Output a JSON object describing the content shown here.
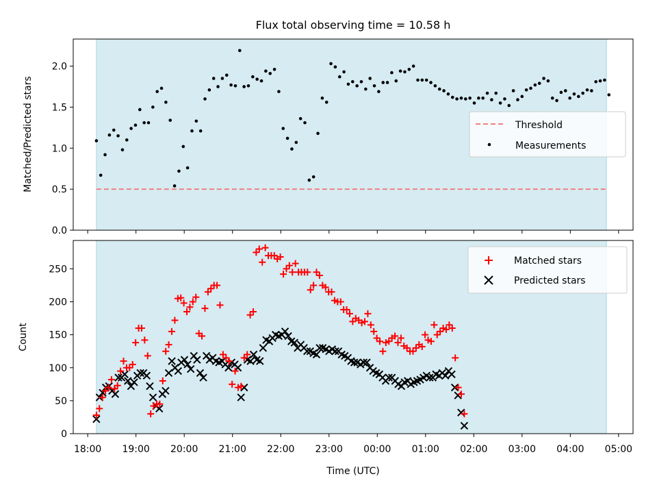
{
  "chart_data": [
    {
      "type": "scatter",
      "title": "Flux total observing time = 10.58 h",
      "ylabel": "Matched/Predicted stars",
      "xlabel": "",
      "ylim": [
        0,
        2.33
      ],
      "yticks": [
        0.0,
        0.5,
        1.0,
        1.5,
        2.0
      ],
      "ytick_labels": [
        "0.0",
        "0.5",
        "1.0",
        "1.5",
        "2.0"
      ],
      "threshold": 0.5,
      "shaded_range_hours": [
        18.18,
        28.75
      ],
      "legend": {
        "position": "right",
        "entries": [
          "Threshold",
          "Measurements"
        ]
      },
      "series": [
        {
          "name": "Measurements",
          "x_hours": [
            18.18,
            18.27,
            18.36,
            18.45,
            18.54,
            18.63,
            18.72,
            18.81,
            18.9,
            18.99,
            19.08,
            19.17,
            19.26,
            19.35,
            19.44,
            19.53,
            19.62,
            19.71,
            19.8,
            19.89,
            19.98,
            20.07,
            20.16,
            20.25,
            20.34,
            20.43,
            20.52,
            20.61,
            20.7,
            20.79,
            20.88,
            20.97,
            21.06,
            21.15,
            21.24,
            21.33,
            21.42,
            21.51,
            21.6,
            21.69,
            21.78,
            21.87,
            21.96,
            22.05,
            22.14,
            22.23,
            22.32,
            22.41,
            22.5,
            22.59,
            22.68,
            22.77,
            22.86,
            22.95,
            23.04,
            23.13,
            23.22,
            23.31,
            23.4,
            23.49,
            23.58,
            23.67,
            23.76,
            23.85,
            23.94,
            24.03,
            24.12,
            24.21,
            24.3,
            24.39,
            24.48,
            24.57,
            24.66,
            24.75,
            24.84,
            24.93,
            25.02,
            25.11,
            25.2,
            25.29,
            25.38,
            25.47,
            25.56,
            25.65,
            25.74,
            25.83,
            25.92,
            26.01,
            26.1,
            26.19,
            26.28,
            26.37,
            26.46,
            26.55,
            26.64,
            26.73,
            26.82,
            26.91,
            27.0,
            27.09,
            27.18,
            27.27,
            27.36,
            27.45,
            27.54,
            27.63,
            27.72,
            27.81,
            27.9,
            27.99,
            28.08,
            28.17,
            28.26,
            28.35,
            28.44,
            28.53,
            28.62,
            28.71,
            28.8
          ],
          "y": [
            1.09,
            0.67,
            0.92,
            1.16,
            1.22,
            1.15,
            0.98,
            1.1,
            1.24,
            1.28,
            1.47,
            1.31,
            1.31,
            1.5,
            1.69,
            1.73,
            1.56,
            1.34,
            0.54,
            0.72,
            1.02,
            0.76,
            1.21,
            1.33,
            1.21,
            1.6,
            1.71,
            1.85,
            1.75,
            1.85,
            1.89,
            1.77,
            1.76,
            2.19,
            1.75,
            1.76,
            1.87,
            1.84,
            1.82,
            1.94,
            1.91,
            1.96,
            1.69,
            1.24,
            1.12,
            0.99,
            1.07,
            1.36,
            1.31,
            0.61,
            0.65,
            1.18,
            1.61,
            1.56,
            2.03,
            1.99,
            1.87,
            1.93,
            1.78,
            1.81,
            1.76,
            1.81,
            1.72,
            1.85,
            1.76,
            1.69,
            1.8,
            1.8,
            1.92,
            1.82,
            1.94,
            1.93,
            1.96,
            2.0,
            1.83,
            1.83,
            1.83,
            1.8,
            1.76,
            1.72,
            1.7,
            1.66,
            1.62,
            1.6,
            1.61,
            1.6,
            1.61,
            1.55,
            1.61,
            1.61,
            1.67,
            1.59,
            1.67,
            1.55,
            1.6,
            1.52,
            1.7,
            1.59,
            1.63,
            1.71,
            1.73,
            1.77,
            1.79,
            1.85,
            1.82,
            1.61,
            1.58,
            1.68,
            1.7,
            1.61,
            1.66,
            1.63,
            1.67,
            1.71,
            1.7,
            1.81,
            1.82,
            1.83,
            1.65
          ]
        }
      ]
    },
    {
      "type": "scatter",
      "title": "",
      "ylabel": "Count",
      "xlabel": "Time (UTC)",
      "ylim": [
        0,
        293
      ],
      "yticks": [
        0,
        50,
        100,
        150,
        200,
        250
      ],
      "ytick_labels": [
        "0",
        "50",
        "100",
        "150",
        "200",
        "250"
      ],
      "x_range_hours": [
        17.7,
        29.3
      ],
      "xticks_hours": [
        18,
        19,
        20,
        21,
        22,
        23,
        24,
        25,
        26,
        27,
        28,
        29
      ],
      "xtick_labels": [
        "18:00",
        "19:00",
        "20:00",
        "21:00",
        "22:00",
        "23:00",
        "00:00",
        "01:00",
        "02:00",
        "03:00",
        "04:00",
        "05:00"
      ],
      "shaded_range_hours": [
        18.18,
        28.75
      ],
      "legend": {
        "position": "top-right",
        "entries": [
          "Matched stars",
          "Predicted stars"
        ]
      },
      "x_step_hours": 0.063,
      "series": [
        {
          "name": "Matched stars",
          "color": "#ff0000",
          "marker": "+",
          "values": [
            28,
            38,
            55,
            65,
            70,
            82,
            68,
            73,
            95,
            110,
            100,
            100,
            105,
            138,
            160,
            160,
            142,
            118,
            30,
            42,
            45,
            45,
            80,
            125,
            135,
            155,
            172,
            205,
            206,
            198,
            185,
            192,
            200,
            207,
            152,
            148,
            190,
            215,
            220,
            225,
            225,
            195,
            120,
            115,
            110,
            75,
            95,
            70,
            72,
            115,
            120,
            180,
            185,
            275,
            280,
            260,
            282,
            270,
            270,
            270,
            265,
            268,
            242,
            250,
            255,
            245,
            258,
            245,
            245,
            245,
            245,
            218,
            225,
            245,
            240,
            225,
            222,
            215,
            215,
            202,
            200,
            200,
            188,
            188,
            182,
            170,
            175,
            172,
            168,
            170,
            182,
            165,
            155,
            145,
            140,
            125,
            138,
            140,
            145,
            148,
            138,
            145,
            133,
            130,
            125,
            125,
            130,
            135,
            132,
            150,
            142,
            140,
            165,
            150,
            155,
            160,
            158,
            165,
            160,
            115,
            70,
            60,
            30
          ]
        },
        {
          "name": "Predicted stars",
          "color": "#000000",
          "marker": "x",
          "values": [
            22,
            55,
            62,
            70,
            72,
            65,
            60,
            85,
            85,
            90,
            80,
            72,
            78,
            88,
            92,
            92,
            88,
            72,
            55,
            42,
            38,
            60,
            65,
            92,
            110,
            100,
            95,
            108,
            112,
            105,
            98,
            118,
            112,
            92,
            85,
            118,
            112,
            115,
            110,
            108,
            110,
            105,
            100,
            108,
            105,
            100,
            55,
            70,
            112,
            110,
            120,
            112,
            110,
            130,
            142,
            140,
            145,
            150,
            148,
            150,
            155,
            148,
            140,
            138,
            130,
            135,
            130,
            125,
            125,
            122,
            120,
            130,
            130,
            128,
            125,
            128,
            125,
            125,
            120,
            118,
            115,
            110,
            108,
            108,
            105,
            108,
            108,
            100,
            95,
            92,
            90,
            85,
            80,
            85,
            85,
            80,
            75,
            72,
            78,
            80,
            75,
            78,
            80,
            82,
            85,
            88,
            85,
            85,
            90,
            88,
            92,
            88,
            95,
            90,
            70,
            58,
            32,
            12
          ]
        }
      ]
    }
  ]
}
